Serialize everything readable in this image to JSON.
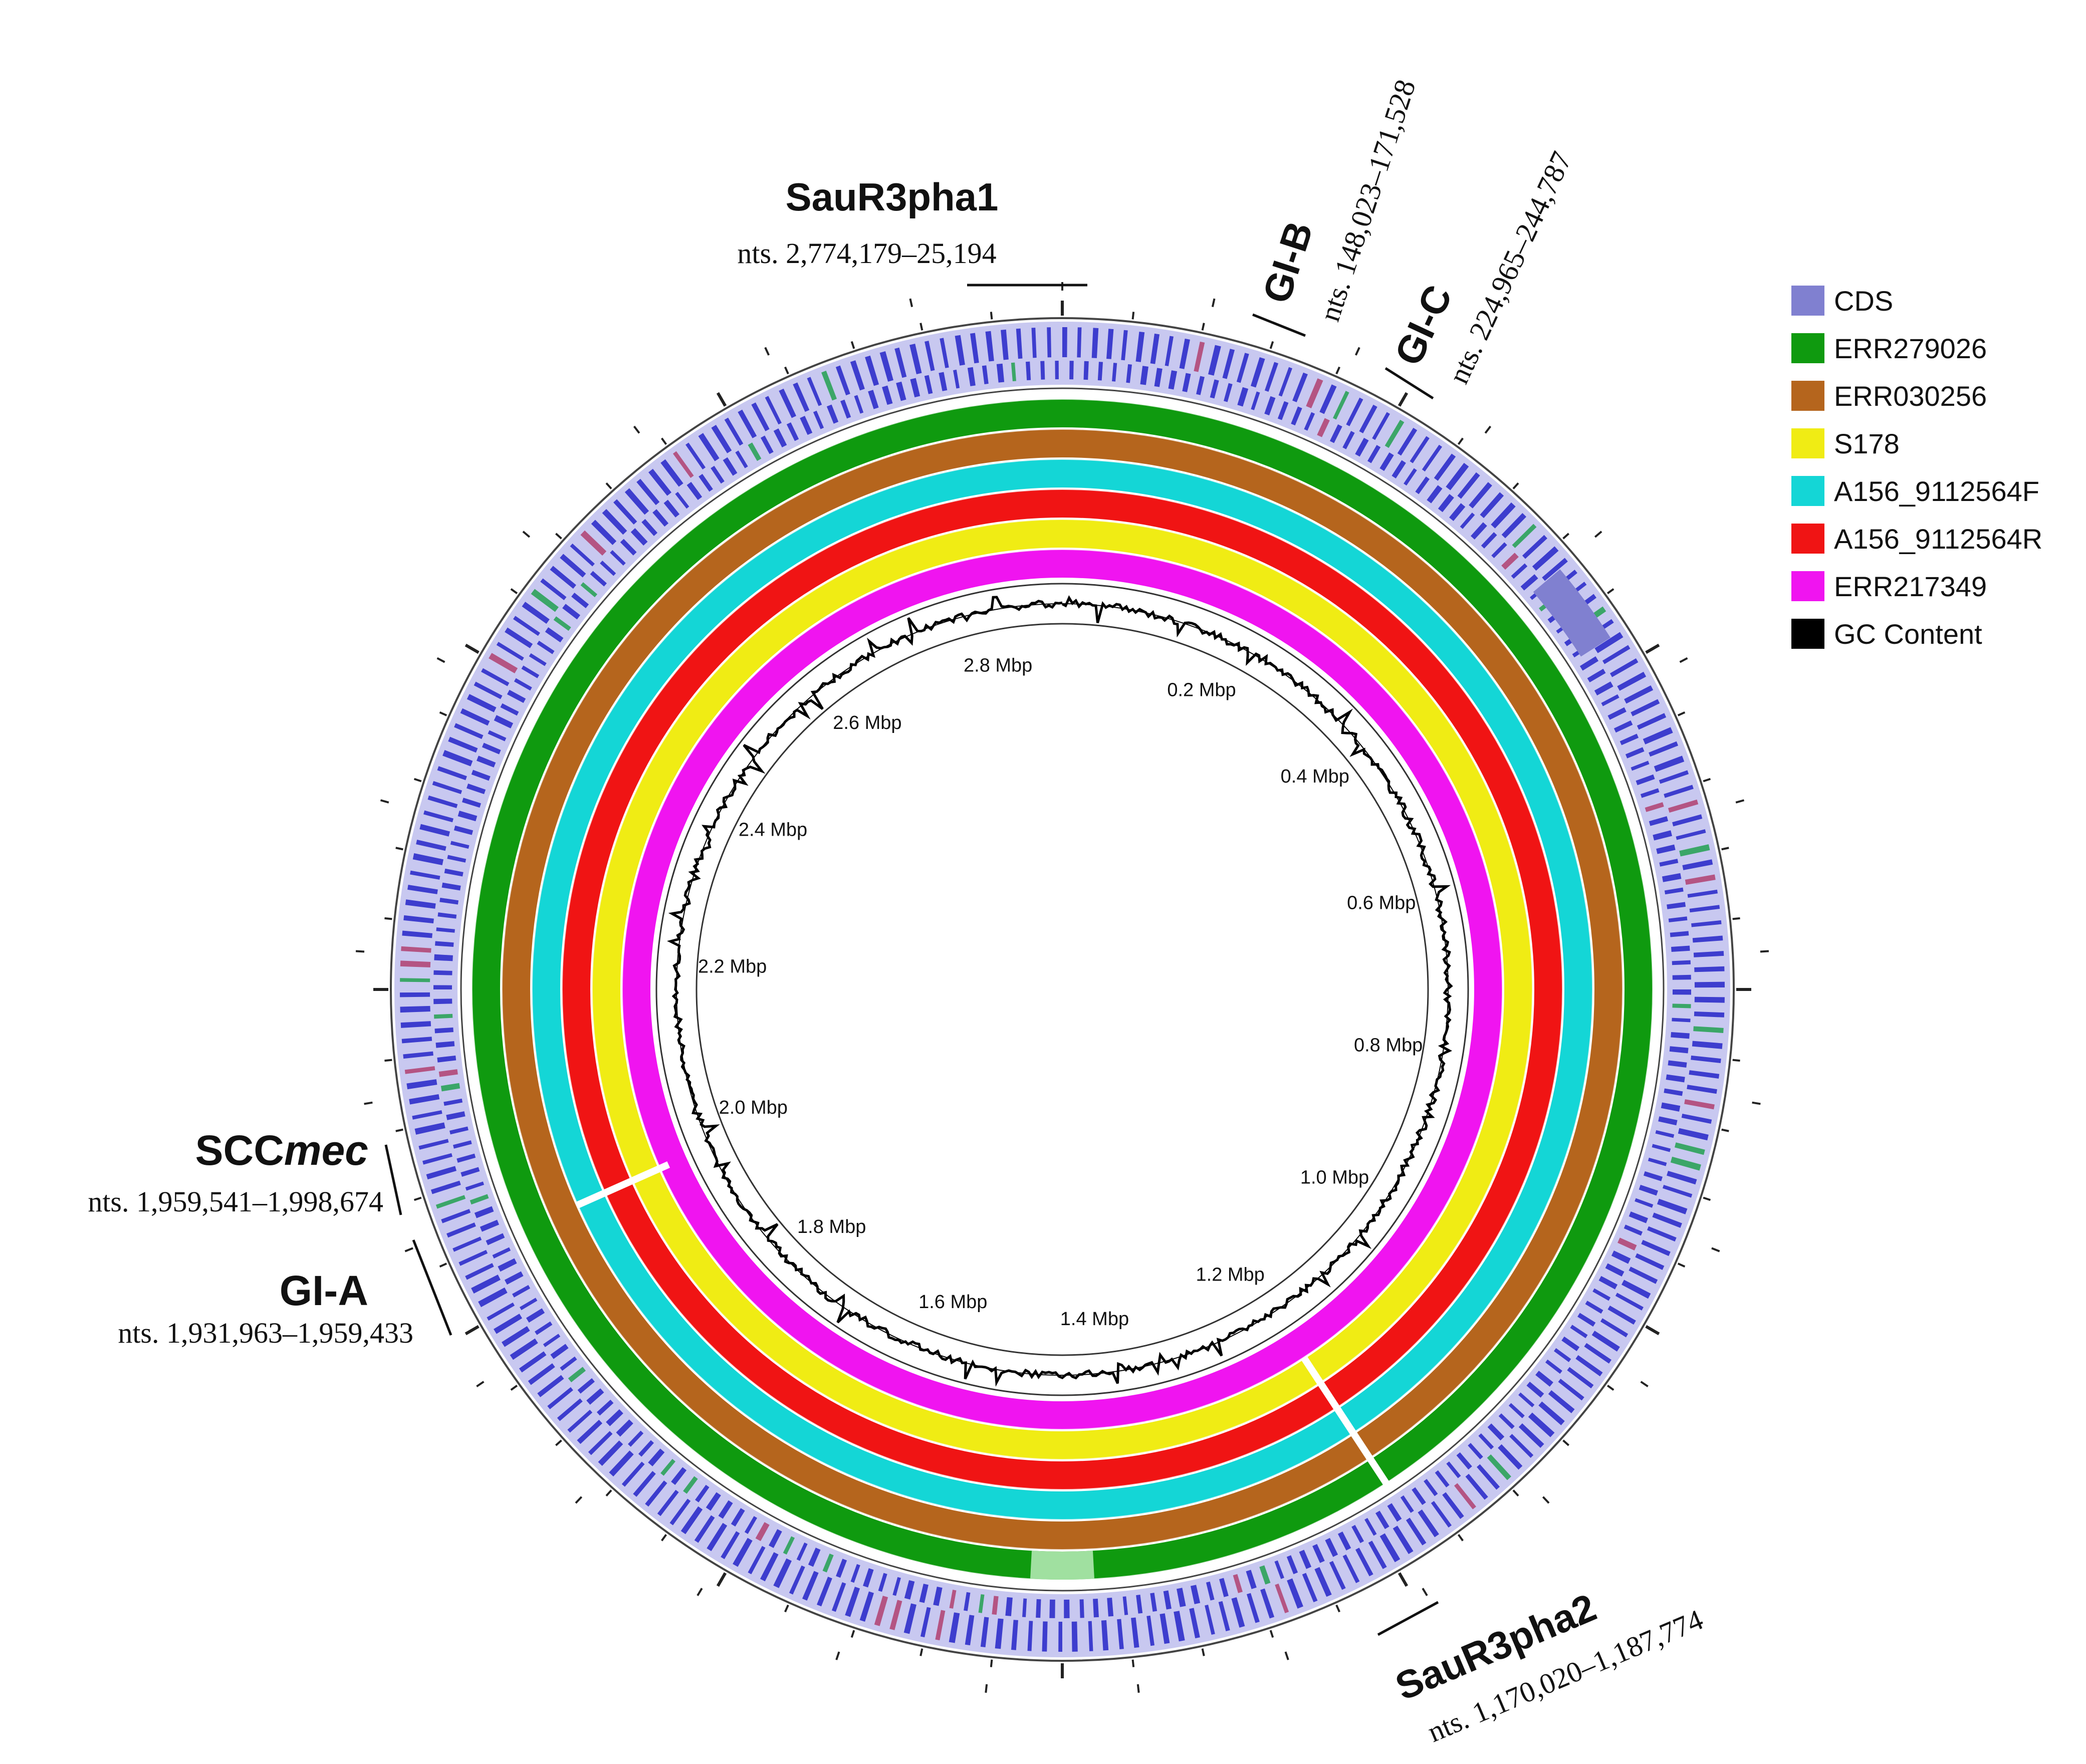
{
  "genome": {
    "length_mbp": 2.89,
    "scale_ticks": [
      "2.8 Mbp",
      "0.2 Mbp",
      "0.4 Mbp",
      "0.6 Mbp",
      "0.8 Mbp",
      "1.0 Mbp",
      "1.2 Mbp",
      "1.4 Mbp",
      "1.6 Mbp",
      "1.8 Mbp",
      "2.0 Mbp",
      "2.2 Mbp",
      "2.4 Mbp",
      "2.6 Mbp"
    ],
    "scale_values_mbp": [
      2.8,
      0.2,
      0.4,
      0.6,
      0.8,
      1.0,
      1.2,
      1.4,
      1.6,
      1.8,
      2.0,
      2.2,
      2.4,
      2.6
    ]
  },
  "rings": [
    {
      "name": "CDS",
      "color": "#3a3ad0"
    },
    {
      "name": "ERR279026",
      "color": "#0f9a0f"
    },
    {
      "name": "ERR030256",
      "color": "#b5651d"
    },
    {
      "name": "A156_9112564F",
      "color": "#14d6d6"
    },
    {
      "name": "A156_9112564R",
      "color": "#f01414"
    },
    {
      "name": "S178",
      "color": "#f0ec14"
    },
    {
      "name": "ERR217349",
      "color": "#f014f0"
    },
    {
      "name": "GC Content",
      "color": "#000000"
    }
  ],
  "regions": [
    {
      "id": "sau1",
      "title": "SauR3pha1",
      "coords": "nts. 2,774,179–25,194"
    },
    {
      "id": "gib",
      "title": "GI-B",
      "coords": "nts. 148,023–171,528"
    },
    {
      "id": "gic",
      "title": "GI-C",
      "coords": "nts. 224,965–244,787"
    },
    {
      "id": "scc",
      "title": "SCC",
      "title_italic": "mec",
      "coords": "nts. 1,959,541–1,998,674"
    },
    {
      "id": "gia",
      "title": "GI-A",
      "coords": "nts. 1,931,963–1,959,433"
    },
    {
      "id": "sau2",
      "title": "SauR3pha2",
      "coords": "nts. 1,170,020–1,187,774"
    }
  ],
  "legend": {
    "items": [
      {
        "label": "CDS",
        "color": "#8080d0"
      },
      {
        "label": "ERR279026",
        "color": "#0f9a0f"
      },
      {
        "label": "ERR030256",
        "color": "#b5651d"
      },
      {
        "label": "S178",
        "color": "#f0ec14"
      },
      {
        "label": "A156_9112564F",
        "color": "#14d6d6"
      },
      {
        "label": "A156_9112564R",
        "color": "#f01414"
      },
      {
        "label": "ERR217349",
        "color": "#f014f0"
      },
      {
        "label": "GC Content",
        "color": "#000000"
      }
    ]
  }
}
